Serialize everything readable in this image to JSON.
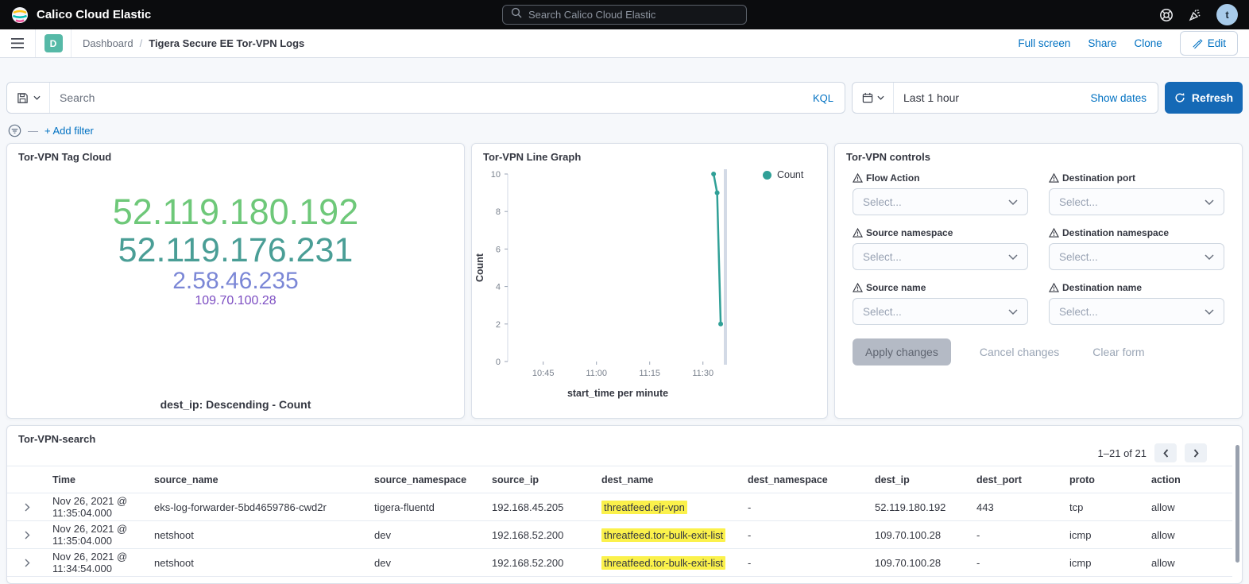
{
  "colors": {
    "accent": "#0071C2",
    "button_fill": "#1569B6",
    "highlight": "#FBF14B",
    "series_teal": "#30A097",
    "badge_teal": "#56B9A7",
    "avatar_bg": "#A8CBEA",
    "disabled_bg": "#B4BAC5",
    "disabled_text": "#5E6470"
  },
  "header": {
    "title": "Calico Cloud Elastic",
    "search_placeholder": "Search Calico Cloud Elastic",
    "avatar_initial": "t"
  },
  "nav": {
    "badge": "D",
    "breadcrumb_root": "Dashboard",
    "breadcrumb_separator": "/",
    "breadcrumb_current": "Tigera Secure EE Tor-VPN Logs",
    "full_screen": "Full screen",
    "share": "Share",
    "clone": "Clone",
    "edit": "Edit"
  },
  "query_bar": {
    "search_placeholder": "Search",
    "language": "KQL",
    "time_range": "Last 1 hour",
    "show_dates": "Show dates",
    "refresh": "Refresh",
    "add_filter": "+ Add filter"
  },
  "panels": {
    "tag_cloud": {
      "title": "Tor-VPN Tag Cloud",
      "caption": "dest_ip: Descending - Count",
      "tags": [
        {
          "text": "52.119.180.192",
          "color": "#6EC879",
          "size": 45
        },
        {
          "text": "52.119.176.231",
          "color": "#4A9E96",
          "size": 43
        },
        {
          "text": "2.58.46.235",
          "color": "#7B87D6",
          "size": 30
        },
        {
          "text": "109.70.100.28",
          "color": "#7C4DC2",
          "size": 16
        }
      ]
    },
    "line_graph": {
      "title": "Tor-VPN Line Graph",
      "legend": "Count"
    },
    "controls": {
      "title": "Tor-VPN controls",
      "fields": [
        {
          "label": "Flow Action",
          "placeholder": "Select..."
        },
        {
          "label": "Destination port",
          "placeholder": "Select..."
        },
        {
          "label": "Source namespace",
          "placeholder": "Select..."
        },
        {
          "label": "Destination namespace",
          "placeholder": "Select..."
        },
        {
          "label": "Source name",
          "placeholder": "Select..."
        },
        {
          "label": "Destination name",
          "placeholder": "Select..."
        }
      ],
      "apply": "Apply changes",
      "cancel": "Cancel changes",
      "clear": "Clear form"
    },
    "search_table": {
      "title": "Tor-VPN-search",
      "pagination": "1–21 of 21",
      "columns": [
        "Time",
        "source_name",
        "source_namespace",
        "source_ip",
        "dest_name",
        "dest_namespace",
        "dest_ip",
        "dest_port",
        "proto",
        "action"
      ],
      "rows": [
        {
          "cells": [
            "Nov 26, 2021 @ 11:35:04.000",
            "eks-log-forwarder-5bd4659786-cwd2r",
            "tigera-fluentd",
            "192.168.45.205",
            "threatfeed.ejr-vpn",
            "-",
            "52.119.180.192",
            "443",
            "tcp",
            "allow"
          ],
          "highlight_index": 4
        },
        {
          "cells": [
            "Nov 26, 2021 @ 11:35:04.000",
            "netshoot",
            "dev",
            "192.168.52.200",
            "threatfeed.tor-bulk-exit-list",
            "-",
            "109.70.100.28",
            "-",
            "icmp",
            "allow"
          ],
          "highlight_index": 4
        },
        {
          "cells": [
            "Nov 26, 2021 @ 11:34:54.000",
            "netshoot",
            "dev",
            "192.168.52.200",
            "threatfeed.tor-bulk-exit-list",
            "-",
            "109.70.100.28",
            "-",
            "icmp",
            "allow"
          ],
          "highlight_index": 4
        }
      ]
    }
  },
  "chart_data": {
    "type": "line",
    "title": "Tor-VPN Line Graph",
    "xlabel": "start_time per minute",
    "ylabel": "Count",
    "x_domain": [
      "10:35",
      "11:37"
    ],
    "x_ticks": [
      "10:45",
      "11:00",
      "11:15",
      "11:30"
    ],
    "y_ticks": [
      0,
      2,
      4,
      6,
      8,
      10
    ],
    "ylim": [
      0,
      10
    ],
    "grid": false,
    "legend_position": "top-right",
    "series": [
      {
        "name": "Count",
        "color": "#30A097",
        "points": [
          {
            "x": "11:33",
            "y": 10
          },
          {
            "x": "11:34",
            "y": 9
          },
          {
            "x": "11:35",
            "y": 2
          }
        ]
      }
    ]
  }
}
